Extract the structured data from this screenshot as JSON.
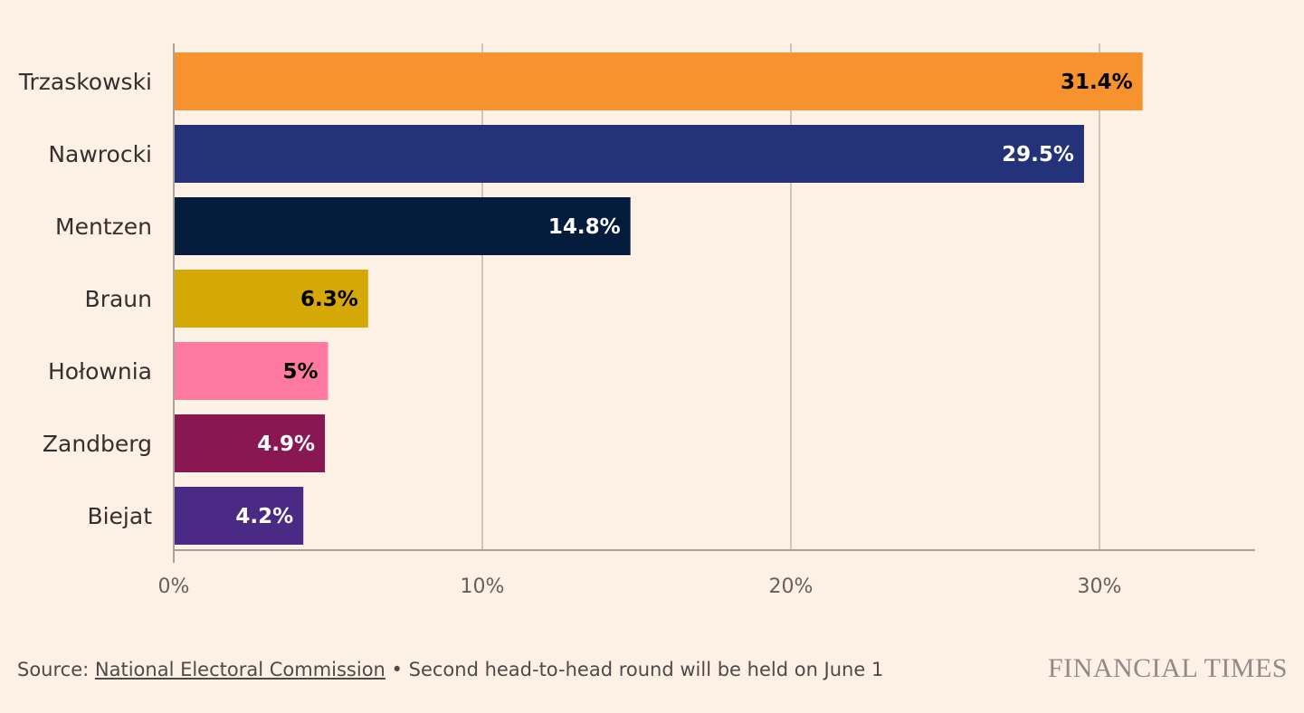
{
  "chart_data": {
    "type": "bar",
    "orientation": "horizontal",
    "categories": [
      "Trzaskowski",
      "Nawrocki",
      "Mentzen",
      "Braun",
      "Hołownia",
      "Zandberg",
      "Biejat"
    ],
    "values": [
      31.4,
      29.5,
      14.8,
      6.3,
      5,
      4.9,
      4.2
    ],
    "value_labels": [
      "31.4%",
      "29.5%",
      "14.8%",
      "6.3%",
      "5%",
      "4.9%",
      "4.2%"
    ],
    "bar_colors": [
      "#F7932F",
      "#24327A",
      "#061C3C",
      "#D4A906",
      "#FF7AA3",
      "#891752",
      "#4B2A86"
    ],
    "label_colors": [
      "#000000",
      "#FFFFFF",
      "#FFFFFF",
      "#000000",
      "#000000",
      "#FFFFFF",
      "#FFFFFF"
    ],
    "xlim": [
      0,
      35
    ],
    "xticks": [
      0,
      10,
      20,
      30
    ],
    "xtick_labels": [
      "0%",
      "10%",
      "20%",
      "30%"
    ],
    "grid": "vertical",
    "title": "",
    "xlabel": "",
    "ylabel": ""
  },
  "footer": {
    "source_prefix": "Source: ",
    "source_link": "National Electoral Commission",
    "note": " • Second head-to-head round will be held on June 1",
    "brand": "FINANCIAL TIMES"
  },
  "colors": {
    "background": "#FDF1E5",
    "gridline": "#CEC6BE",
    "axis": "#A7A19C",
    "text": "#33302E"
  }
}
